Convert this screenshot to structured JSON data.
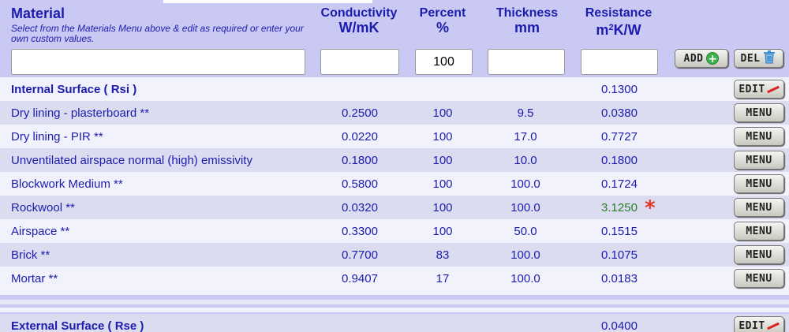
{
  "header": {
    "material_title": "Material",
    "material_subtitle": "Select from the Materials Menu above & edit as required or enter your own custom values.",
    "columns": [
      {
        "label": "Conductivity",
        "unit": "W/mK"
      },
      {
        "label": "Percent",
        "unit": "%"
      },
      {
        "label": "Thickness",
        "unit": "mm"
      },
      {
        "label": "Resistance",
        "unit_prefix": "m",
        "unit_sup": "2",
        "unit_suffix": "K/W"
      }
    ]
  },
  "inputs": {
    "material_value": "",
    "conductivity_value": "",
    "percent_value": "100",
    "thickness_value": "",
    "resistance_value": ""
  },
  "buttons": {
    "add_label": "ADD",
    "del_label": "DEL",
    "edit_label": "EDIT",
    "menu_label": "MENU"
  },
  "internal_surface": {
    "name": "Internal Surface ( Rsi )",
    "resistance": "0.1300"
  },
  "layers": [
    {
      "name": "Dry lining - plasterboard **",
      "conductivity": "0.2500",
      "percent": "100",
      "thickness": "9.5",
      "resistance": "0.0380"
    },
    {
      "name": "Dry lining - PIR **",
      "conductivity": "0.0220",
      "percent": "100",
      "thickness": "17.0",
      "resistance": "0.7727"
    },
    {
      "name": "Unventilated airspace normal (high) emissivity",
      "conductivity": "0.1800",
      "percent": "100",
      "thickness": "10.0",
      "resistance": "0.1800"
    },
    {
      "name": "Blockwork Medium **",
      "conductivity": "0.5800",
      "percent": "100",
      "thickness": "100.0",
      "resistance": "0.1724"
    },
    {
      "name": "Rockwool **",
      "conductivity": "0.0320",
      "percent": "100",
      "thickness": "100.0",
      "resistance": "3.1250",
      "star": "*"
    },
    {
      "name": "Airspace **",
      "conductivity": "0.3300",
      "percent": "100",
      "thickness": "50.0",
      "resistance": "0.1515"
    },
    {
      "name": "Brick **",
      "conductivity": "0.7700",
      "percent": "83",
      "thickness": "100.0",
      "resistance": "0.1075"
    },
    {
      "name": "Mortar **",
      "conductivity": "0.9407",
      "percent": "17",
      "thickness": "100.0",
      "resistance": "0.0183"
    }
  ],
  "external_surface": {
    "name": "External Surface ( Rse )",
    "resistance": "0.0400"
  },
  "colors": {
    "text": "#1c1cae",
    "highlight": "#2a7a2a",
    "star": "#e8332b",
    "background": "#c9c9f3"
  }
}
